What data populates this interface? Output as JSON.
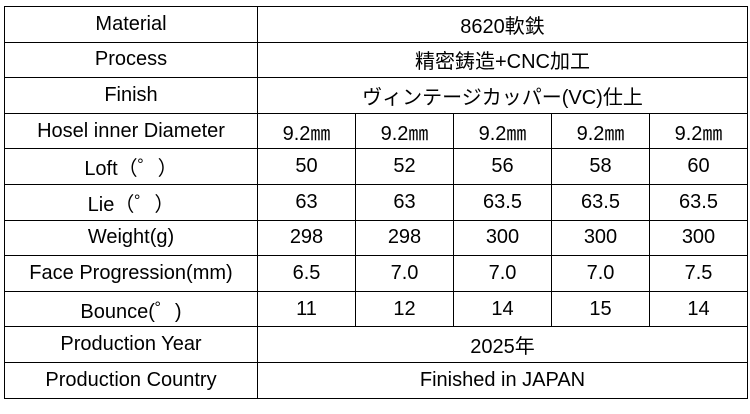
{
  "rows": [
    {
      "label": "Material",
      "value": "8620軟鉄"
    },
    {
      "label": "Process",
      "value": "精密鋳造+CNC加工"
    },
    {
      "label": "Finish",
      "value": "ヴィンテージカッパー(VC)仕上"
    },
    {
      "label": "Hosel inner Diameter",
      "values": [
        "9.2㎜",
        "9.2㎜",
        "9.2㎜",
        "9.2㎜",
        "9.2㎜"
      ]
    },
    {
      "label": "Loft（゜）",
      "values": [
        "50",
        "52",
        "56",
        "58",
        "60"
      ]
    },
    {
      "label": "Lie（゜）",
      "values": [
        "63",
        "63",
        "63.5",
        "63.5",
        "63.5"
      ]
    },
    {
      "label": "Weight(g)",
      "values": [
        "298",
        "298",
        "300",
        "300",
        "300"
      ]
    },
    {
      "label": "Face Progression(mm)",
      "values": [
        "6.5",
        "7.0",
        "7.0",
        "7.0",
        "7.5"
      ]
    },
    {
      "label": "Bounce(゜)",
      "values": [
        "11",
        "12",
        "14",
        "15",
        "14"
      ]
    },
    {
      "label": "Production Year",
      "value": "2025年"
    },
    {
      "label": "Production Country",
      "value": "Finished in JAPAN"
    }
  ]
}
